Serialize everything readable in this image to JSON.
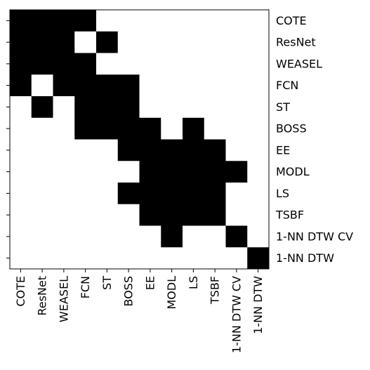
{
  "chart_data": {
    "type": "heatmap",
    "title": "",
    "xlabel": "",
    "ylabel": "",
    "colors": {
      "filled": "#000000",
      "empty": "#ffffff"
    },
    "grid": false,
    "legend": "none",
    "row_labels": [
      "COTE",
      "ResNet",
      "WEASEL",
      "FCN",
      "ST",
      "BOSS",
      "EE",
      "MODL",
      "LS",
      "TSBF",
      "1-NN DTW CV",
      "1-NN DTW"
    ],
    "col_labels": [
      "COTE",
      "ResNet",
      "WEASEL",
      "FCN",
      "ST",
      "BOSS",
      "EE",
      "MODL",
      "LS",
      "TSBF",
      "1-NN DTW CV",
      "1-NN DTW"
    ],
    "matrix": [
      [
        1,
        1,
        1,
        1,
        0,
        0,
        0,
        0,
        0,
        0,
        0,
        0
      ],
      [
        1,
        1,
        1,
        0,
        1,
        0,
        0,
        0,
        0,
        0,
        0,
        0
      ],
      [
        1,
        1,
        1,
        1,
        0,
        0,
        0,
        0,
        0,
        0,
        0,
        0
      ],
      [
        1,
        0,
        1,
        1,
        1,
        1,
        0,
        0,
        0,
        0,
        0,
        0
      ],
      [
        0,
        1,
        0,
        1,
        1,
        1,
        0,
        0,
        0,
        0,
        0,
        0
      ],
      [
        0,
        0,
        0,
        1,
        1,
        1,
        1,
        0,
        1,
        0,
        0,
        0
      ],
      [
        0,
        0,
        0,
        0,
        0,
        1,
        1,
        1,
        1,
        1,
        0,
        0
      ],
      [
        0,
        0,
        0,
        0,
        0,
        0,
        1,
        1,
        1,
        1,
        1,
        0
      ],
      [
        0,
        0,
        0,
        0,
        0,
        1,
        1,
        1,
        1,
        1,
        0,
        0
      ],
      [
        0,
        0,
        0,
        0,
        0,
        0,
        1,
        1,
        1,
        1,
        0,
        0
      ],
      [
        0,
        0,
        0,
        0,
        0,
        0,
        0,
        1,
        0,
        0,
        1,
        0
      ],
      [
        0,
        0,
        0,
        0,
        0,
        0,
        0,
        0,
        0,
        0,
        0,
        1
      ]
    ]
  }
}
